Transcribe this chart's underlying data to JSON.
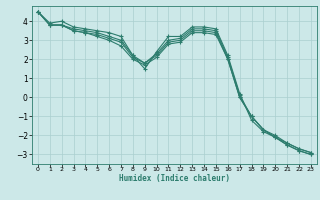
{
  "xlabel": "Humidex (Indice chaleur)",
  "bg_color": "#cce8e8",
  "line_color": "#2d7d6e",
  "grid_color": "#aacfcf",
  "xlim": [
    -0.5,
    23.5
  ],
  "ylim": [
    -3.5,
    4.8
  ],
  "yticks": [
    -3,
    -2,
    -1,
    0,
    1,
    2,
    3,
    4
  ],
  "xticks": [
    0,
    1,
    2,
    3,
    4,
    5,
    6,
    7,
    8,
    9,
    10,
    11,
    12,
    13,
    14,
    15,
    16,
    17,
    18,
    19,
    20,
    21,
    22,
    23
  ],
  "lines": [
    [
      4.5,
      3.9,
      4.0,
      3.7,
      3.6,
      3.5,
      3.4,
      3.2,
      2.2,
      1.5,
      2.4,
      3.2,
      3.2,
      3.7,
      3.7,
      3.6,
      2.2,
      0.2,
      -1.2,
      -1.8,
      -2.1,
      -2.5,
      -2.8,
      -3.0
    ],
    [
      4.5,
      3.8,
      3.8,
      3.6,
      3.5,
      3.4,
      3.2,
      3.0,
      2.2,
      1.8,
      2.3,
      3.0,
      3.1,
      3.6,
      3.6,
      3.5,
      2.1,
      0.1,
      -1.0,
      -1.7,
      -2.0,
      -2.4,
      -2.7,
      -2.9
    ],
    [
      4.5,
      3.8,
      3.8,
      3.5,
      3.4,
      3.3,
      3.1,
      2.9,
      2.1,
      1.8,
      2.2,
      2.9,
      3.0,
      3.5,
      3.5,
      3.4,
      2.0,
      0.0,
      -1.0,
      -1.7,
      -2.1,
      -2.4,
      -2.7,
      -2.9
    ],
    [
      4.5,
      3.8,
      3.8,
      3.5,
      3.4,
      3.2,
      3.0,
      2.7,
      2.0,
      1.7,
      2.1,
      2.8,
      2.9,
      3.4,
      3.4,
      3.3,
      2.0,
      0.0,
      -1.0,
      -1.7,
      -2.1,
      -2.5,
      -2.8,
      -3.0
    ]
  ]
}
